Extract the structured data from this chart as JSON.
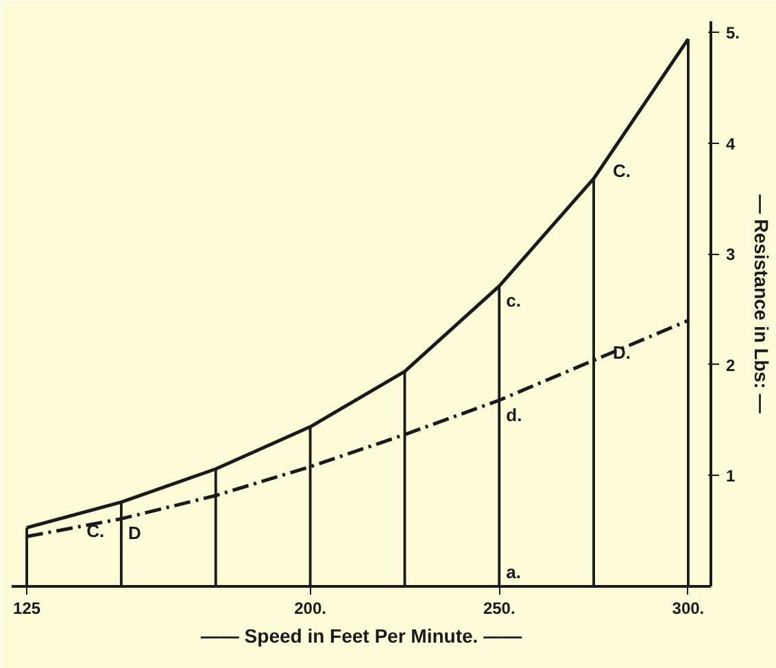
{
  "chart_data": {
    "type": "line",
    "xlabel": "—— Speed in Feet Per Minute. ——",
    "ylabel": "— Resistance in Lbs: —",
    "x": [
      125,
      150,
      175,
      200,
      225,
      250,
      275,
      300
    ],
    "series": [
      {
        "name": "C.",
        "color": "#1a1a1a",
        "line_style": "solid",
        "values": [
          0.53,
          0.76,
          1.06,
          1.44,
          1.94,
          2.71,
          3.68,
          4.94
        ]
      },
      {
        "name": "D.",
        "color": "#1a1a1a",
        "line_style": "dashed",
        "values": [
          0.45,
          0.61,
          0.82,
          1.08,
          1.37,
          1.68,
          2.04,
          2.4
        ]
      },
      {
        "type": "bar",
        "color": "#1a1a1a",
        "values": [
          0.53,
          0.76,
          1.06,
          1.44,
          1.94,
          2.71,
          3.68,
          4.94
        ]
      }
    ],
    "annotations": [
      {
        "text": "C.",
        "x": 139,
        "y": 0.63
      },
      {
        "text": "D",
        "x": 150,
        "y": 0.61
      },
      {
        "text": "c.",
        "x": 250,
        "y": 2.71
      },
      {
        "text": "d.",
        "x": 250,
        "y": 1.68
      },
      {
        "text": "a.",
        "x": 250,
        "y": 0
      }
    ],
    "xlim": [
      121,
      306
    ],
    "ylim": [
      0,
      5.1
    ],
    "xticks": [
      125,
      {
        "value": 200,
        "label": "200."
      },
      {
        "value": 250,
        "label": "250."
      },
      {
        "value": 300,
        "label": "300."
      }
    ],
    "yticks": [
      1,
      2,
      3,
      4,
      {
        "value": 5,
        "label": "5."
      }
    ],
    "marker": "none",
    "grid": false,
    "legend": false
  }
}
